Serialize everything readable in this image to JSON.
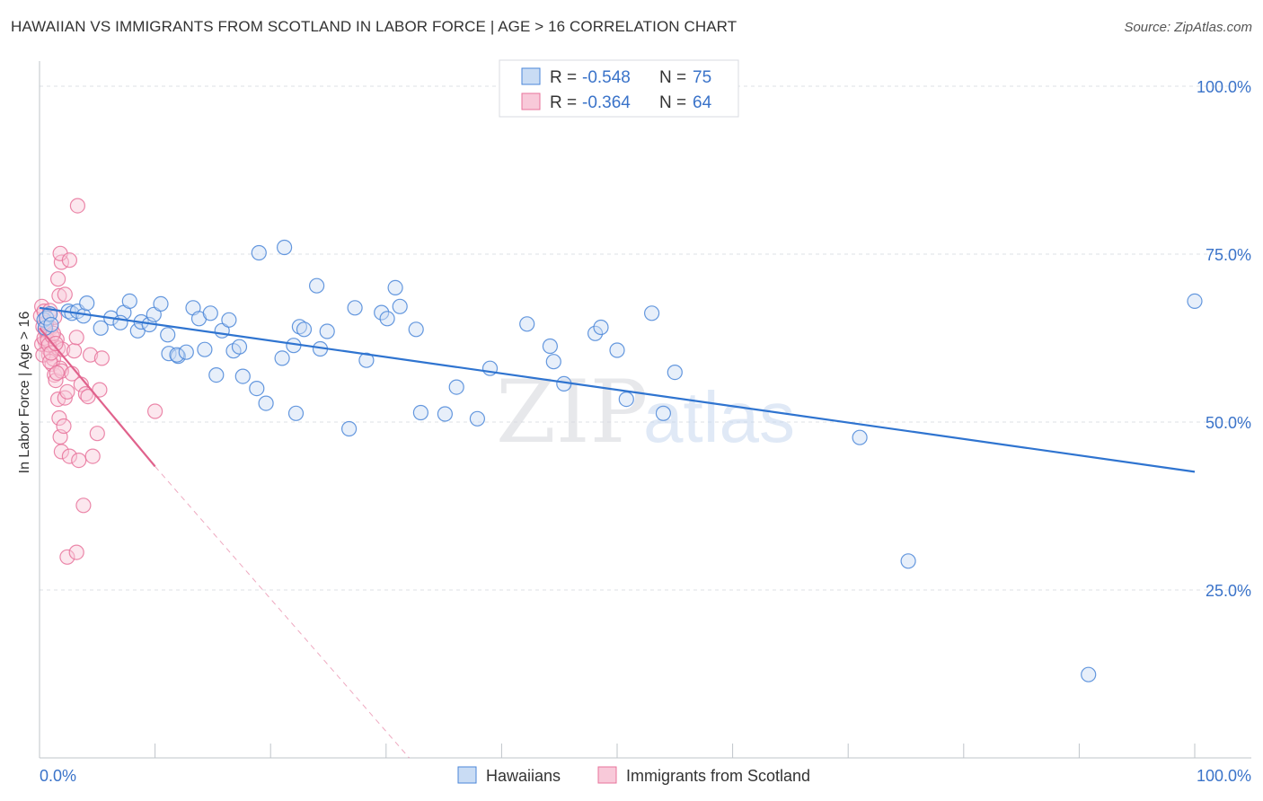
{
  "title": "HAWAIIAN VS IMMIGRANTS FROM SCOTLAND IN LABOR FORCE | AGE > 16 CORRELATION CHART",
  "source": "Source: ZipAtlas.com",
  "watermark": {
    "zip": "ZIP",
    "atlas": "atlas"
  },
  "colors": {
    "blue": "#4a86d8",
    "blue_fill": "#c9dcf4",
    "blue_line": "#2f74d0",
    "pink": "#e8739b",
    "pink_fill": "#f8c9d9",
    "pink_line": "#e0628c",
    "value_text": "#3a73c9",
    "grid": "#dde1e6"
  },
  "chart_data": {
    "type": "scatter",
    "title": "HAWAIIAN VS IMMIGRANTS FROM SCOTLAND IN LABOR FORCE | AGE > 16 CORRELATION CHART",
    "xlabel": "",
    "ylabel": "In Labor Force | Age > 16",
    "xlim": [
      0,
      100
    ],
    "ylim": [
      0,
      100
    ],
    "x_tick_labels": [
      "0.0%",
      "100.0%"
    ],
    "y_tick_labels": [
      "100.0%",
      "75.0%",
      "50.0%",
      "25.0%"
    ],
    "y_ticks": [
      100,
      75,
      50,
      25
    ],
    "grid": true,
    "legend_position": "top-center",
    "legend": [
      {
        "r_label": "R =",
        "r_value": "-0.548",
        "n_label": "N =",
        "n_value": "75"
      },
      {
        "r_label": "R =",
        "r_value": "-0.364",
        "n_label": "N =",
        "n_value": "64"
      }
    ],
    "series": [
      {
        "name": "Hawaiians",
        "color": "#4a86d8",
        "trend": {
          "x": [
            0,
            100
          ],
          "y": [
            67.0,
            42.6
          ]
        },
        "points": [
          [
            0.4,
            65.2
          ],
          [
            0.5,
            64.0
          ],
          [
            0.6,
            65.5
          ],
          [
            0.9,
            66.1
          ],
          [
            1.0,
            64.5
          ],
          [
            2.5,
            66.5
          ],
          [
            2.8,
            66.2
          ],
          [
            3.3,
            66.5
          ],
          [
            3.8,
            65.8
          ],
          [
            4.1,
            67.7
          ],
          [
            5.3,
            64.0
          ],
          [
            6.2,
            65.5
          ],
          [
            7.3,
            66.3
          ],
          [
            7.0,
            64.8
          ],
          [
            7.8,
            68.0
          ],
          [
            8.5,
            63.6
          ],
          [
            8.8,
            64.9
          ],
          [
            9.5,
            64.5
          ],
          [
            9.9,
            66.0
          ],
          [
            10.5,
            67.6
          ],
          [
            11.1,
            63.0
          ],
          [
            11.2,
            60.2
          ],
          [
            12.0,
            59.8
          ],
          [
            11.9,
            60.0
          ],
          [
            12.7,
            60.4
          ],
          [
            13.3,
            67.0
          ],
          [
            13.8,
            65.4
          ],
          [
            14.3,
            60.8
          ],
          [
            14.8,
            66.2
          ],
          [
            15.3,
            57.0
          ],
          [
            15.8,
            63.6
          ],
          [
            16.8,
            60.6
          ],
          [
            16.4,
            65.2
          ],
          [
            17.3,
            61.2
          ],
          [
            17.6,
            56.8
          ],
          [
            18.8,
            55.0
          ],
          [
            19.0,
            75.2
          ],
          [
            19.6,
            52.8
          ],
          [
            21.2,
            76.0
          ],
          [
            21.0,
            59.5
          ],
          [
            22.0,
            61.4
          ],
          [
            22.5,
            64.2
          ],
          [
            22.9,
            63.8
          ],
          [
            22.2,
            51.3
          ],
          [
            24.0,
            70.3
          ],
          [
            24.3,
            60.9
          ],
          [
            24.9,
            63.5
          ],
          [
            26.8,
            49.0
          ],
          [
            27.3,
            67.0
          ],
          [
            28.3,
            59.2
          ],
          [
            29.6,
            66.3
          ],
          [
            30.1,
            65.4
          ],
          [
            30.8,
            70.0
          ],
          [
            31.2,
            67.2
          ],
          [
            32.6,
            63.8
          ],
          [
            33.0,
            51.4
          ],
          [
            35.1,
            51.2
          ],
          [
            36.1,
            55.2
          ],
          [
            37.9,
            50.5
          ],
          [
            39.0,
            58.0
          ],
          [
            42.2,
            64.6
          ],
          [
            44.2,
            61.3
          ],
          [
            44.5,
            59.0
          ],
          [
            45.4,
            55.7
          ],
          [
            48.1,
            63.2
          ],
          [
            48.6,
            64.1
          ],
          [
            50.0,
            60.7
          ],
          [
            50.8,
            53.4
          ],
          [
            54.0,
            51.3
          ],
          [
            55.0,
            57.4
          ],
          [
            71.0,
            47.7
          ],
          [
            75.2,
            29.3
          ],
          [
            90.8,
            12.4
          ],
          [
            100.0,
            68.0
          ],
          [
            53.0,
            66.2
          ]
        ]
      },
      {
        "name": "Immigrants from Scotland",
        "color": "#e8739b",
        "trend": {
          "x": [
            0,
            10
          ],
          "y": [
            64.0,
            43.4
          ]
        },
        "trend_extension": {
          "x": [
            10,
            32
          ],
          "y": [
            43.4,
            -2.0
          ]
        },
        "points": [
          [
            0.1,
            65.8
          ],
          [
            0.2,
            67.2
          ],
          [
            0.3,
            64.2
          ],
          [
            0.4,
            66.5
          ],
          [
            0.5,
            62.0
          ],
          [
            0.6,
            63.4
          ],
          [
            0.7,
            61.0
          ],
          [
            0.8,
            60.0
          ],
          [
            0.9,
            66.6
          ],
          [
            1.0,
            64.0
          ],
          [
            1.1,
            58.6
          ],
          [
            1.2,
            59.4
          ],
          [
            1.3,
            57.0
          ],
          [
            1.4,
            56.2
          ],
          [
            1.5,
            62.3
          ],
          [
            1.6,
            61.0
          ],
          [
            1.7,
            68.8
          ],
          [
            1.8,
            58.0
          ],
          [
            1.9,
            57.6
          ],
          [
            2.0,
            60.8
          ],
          [
            0.2,
            61.6
          ],
          [
            0.3,
            60.0
          ],
          [
            0.4,
            62.5
          ],
          [
            0.5,
            63.8
          ],
          [
            0.6,
            64.8
          ],
          [
            0.7,
            62.2
          ],
          [
            0.8,
            61.5
          ],
          [
            0.9,
            59.0
          ],
          [
            1.0,
            60.3
          ],
          [
            1.1,
            62.8
          ],
          [
            1.2,
            63.2
          ],
          [
            1.3,
            65.6
          ],
          [
            1.4,
            61.7
          ],
          [
            1.5,
            57.3
          ],
          [
            1.6,
            53.4
          ],
          [
            1.7,
            50.6
          ],
          [
            1.8,
            47.8
          ],
          [
            1.9,
            45.6
          ],
          [
            2.1,
            49.4
          ],
          [
            2.2,
            53.6
          ],
          [
            2.4,
            54.5
          ],
          [
            2.6,
            44.9
          ],
          [
            2.8,
            57.2
          ],
          [
            3.0,
            60.6
          ],
          [
            3.2,
            62.6
          ],
          [
            3.4,
            44.3
          ],
          [
            3.6,
            55.6
          ],
          [
            3.8,
            37.6
          ],
          [
            4.0,
            54.2
          ],
          [
            4.2,
            53.8
          ],
          [
            4.4,
            60.0
          ],
          [
            4.6,
            44.9
          ],
          [
            5.0,
            48.3
          ],
          [
            5.2,
            54.8
          ],
          [
            5.4,
            59.5
          ],
          [
            1.6,
            71.3
          ],
          [
            1.9,
            73.8
          ],
          [
            1.8,
            75.1
          ],
          [
            2.6,
            74.1
          ],
          [
            3.3,
            82.2
          ],
          [
            2.4,
            29.9
          ],
          [
            3.2,
            30.6
          ],
          [
            10.0,
            51.6
          ],
          [
            2.2,
            69.0
          ]
        ]
      }
    ]
  }
}
